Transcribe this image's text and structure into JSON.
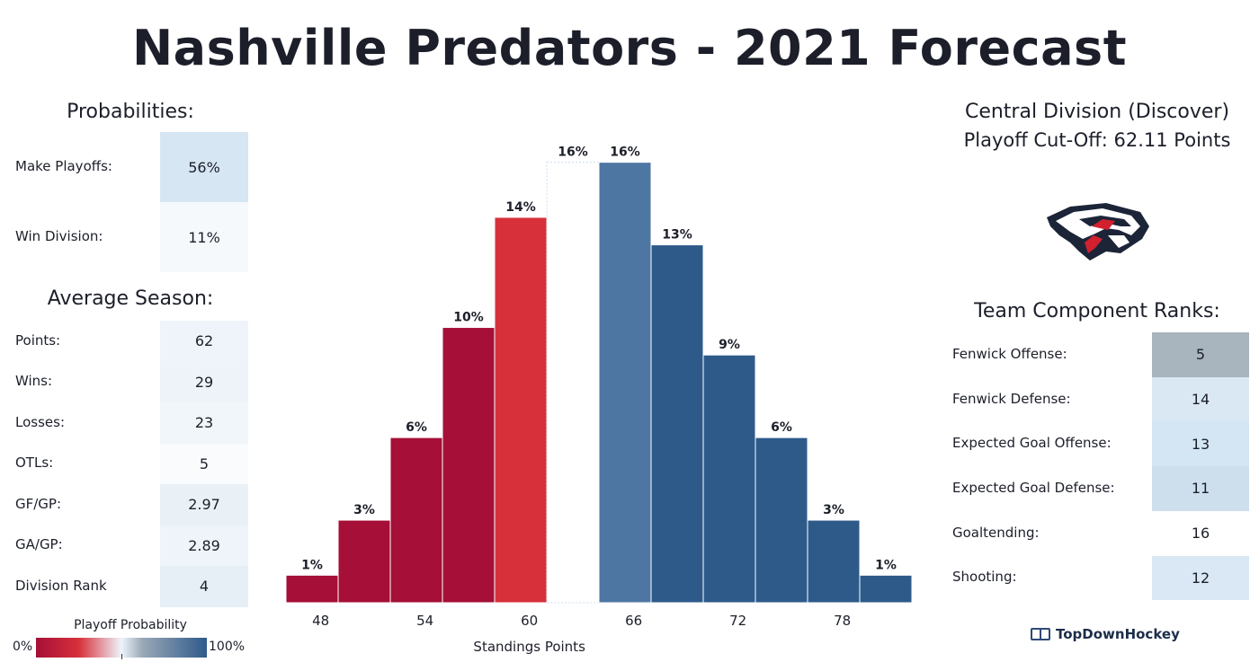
{
  "title": "Nashville Predators - 2021 Forecast",
  "probabilities": {
    "heading": "Probabilities:",
    "rows": [
      {
        "label": "Make Playoffs:",
        "value": "56%",
        "color": "#d6e6f3"
      },
      {
        "label": "Win Division:",
        "value": "11%",
        "color": "#f6f9fc"
      }
    ]
  },
  "average_season": {
    "heading": "Average Season:",
    "rows": [
      {
        "label": "Points:",
        "value": "62",
        "color": "#eef4f9"
      },
      {
        "label": "Wins:",
        "value": "29",
        "color": "#edf3f8"
      },
      {
        "label": "Losses:",
        "value": "23",
        "color": "#f1f6fa"
      },
      {
        "label": "OTLs:",
        "value": "5",
        "color": "#f9fbfd"
      },
      {
        "label": "GF/GP:",
        "value": "2.97",
        "color": "#e9f1f7"
      },
      {
        "label": "GA/GP:",
        "value": "2.89",
        "color": "#eef4f9"
      },
      {
        "label": "Division Rank",
        "value": "4",
        "color": "#e6eff6"
      }
    ]
  },
  "division": {
    "name": "Central Division (Discover)",
    "cutoff": "Playoff Cut-Off: 62.11 Points"
  },
  "team_ranks": {
    "heading": "Team Component Ranks:",
    "rows": [
      {
        "label": "Fenwick Offense:",
        "value": "5",
        "color": "#a8b4be"
      },
      {
        "label": "Fenwick Defense:",
        "value": "14",
        "color": "#dae8f3"
      },
      {
        "label": "Expected Goal Offense:",
        "value": "13",
        "color": "#d4e5f3"
      },
      {
        "label": "Expected Goal Defense:",
        "value": "11",
        "color": "#cddfed"
      },
      {
        "label": "Goaltending:",
        "value": "16",
        "color": "#ffffff"
      },
      {
        "label": "Shooting:",
        "value": "12",
        "color": "#d9e8f4"
      }
    ]
  },
  "legend": {
    "title": "Playoff Probability",
    "min_label": "0%",
    "max_label": "100%"
  },
  "brand": "TopDownHockey",
  "chart_data": {
    "type": "bar",
    "title": "",
    "xlabel": "Standings Points",
    "ylabel": "",
    "bin_starts": [
      46,
      49,
      52,
      55,
      58,
      61,
      64,
      67,
      70,
      73,
      76,
      79
    ],
    "bin_width": 3,
    "values": [
      1,
      3,
      6,
      10,
      14,
      16,
      16,
      13,
      9,
      6,
      3,
      1
    ],
    "value_labels": [
      "1%",
      "3%",
      "6%",
      "10%",
      "14%",
      "16%",
      "16%",
      "13%",
      "9%",
      "6%",
      "3%",
      "1%"
    ],
    "colors": [
      "#a50f38",
      "#a50f38",
      "#a50f38",
      "#a50f38",
      "#d7303a",
      "#ffffff",
      "#4e76a3",
      "#2e5a8a",
      "#2e5a8a",
      "#2e5a8a",
      "#2e5a8a",
      "#2e5a8a"
    ],
    "x_ticks": [
      48,
      54,
      60,
      66,
      72,
      78
    ],
    "xlim": [
      45,
      82
    ],
    "ylim": [
      0,
      17
    ],
    "grid": false
  }
}
